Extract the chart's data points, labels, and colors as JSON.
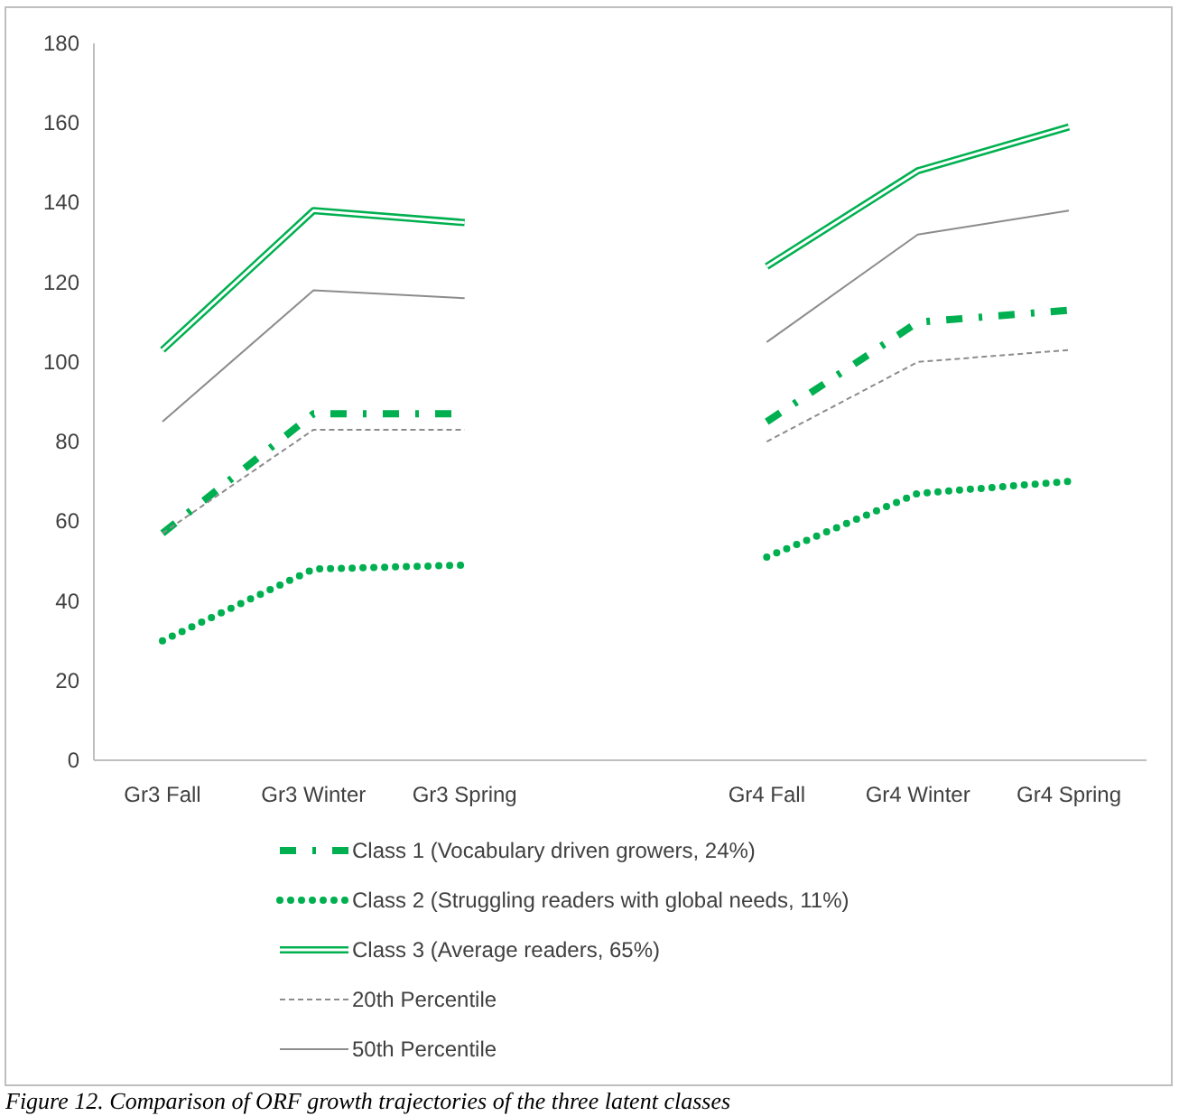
{
  "chart_data": {
    "type": "line",
    "categories": [
      "Gr3 Fall",
      "Gr3 Winter",
      "Gr3 Spring",
      null,
      "Gr4 Fall",
      "Gr4 Winter",
      "Gr4 Spring"
    ],
    "series": [
      {
        "name": "Class 1 (Vocabulary driven growers, 24%)",
        "color": "#00b050",
        "line_style": "dashed",
        "values": [
          57,
          87,
          87,
          null,
          85,
          110,
          113
        ]
      },
      {
        "name": "Class 2 (Struggling readers with global needs, 11%)",
        "color": "#00b050",
        "line_style": "dotted",
        "values": [
          30,
          48,
          49,
          null,
          51,
          67,
          70
        ]
      },
      {
        "name": "Class 3 (Average readers, 65%)",
        "color": "#00b050",
        "line_style": "solid",
        "values": [
          103,
          138,
          135,
          null,
          124,
          148,
          159
        ]
      },
      {
        "name": "20th Percentile",
        "color": "#8c8c8c",
        "line_style": "dashed",
        "values": [
          57,
          83,
          83,
          null,
          80,
          100,
          103
        ]
      },
      {
        "name": "50th Percentile",
        "color": "#8c8c8c",
        "line_style": "solid",
        "values": [
          85,
          118,
          116,
          null,
          105,
          132,
          138
        ]
      }
    ],
    "ylim": [
      0,
      180
    ],
    "yticks": [
      0,
      20,
      40,
      60,
      80,
      100,
      120,
      140,
      160,
      180
    ],
    "grid": false,
    "legend": "bottom",
    "marker": "none",
    "annotations": [
      "Figure 12. Comparison of ORF growth trajectories of the three latent classes"
    ]
  }
}
